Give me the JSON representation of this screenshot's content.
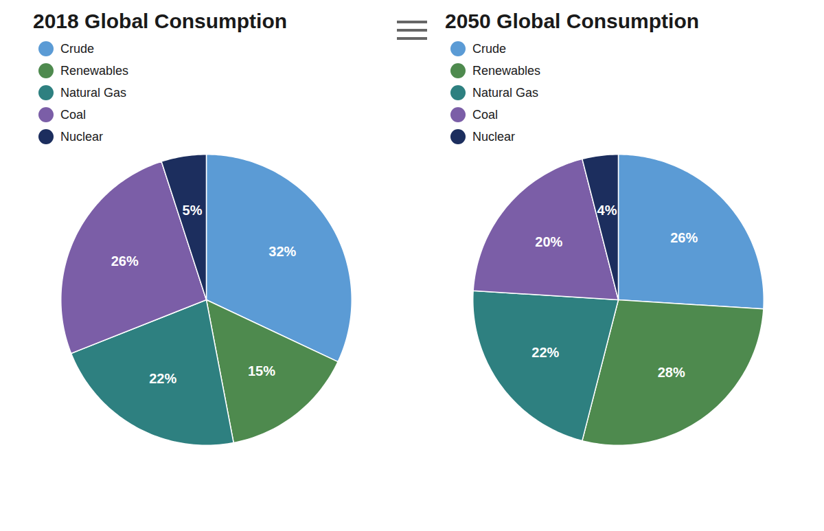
{
  "chart_data": [
    {
      "type": "pie",
      "title": "2018 Global Consumption",
      "categories": [
        "Crude",
        "Renewables",
        "Natural Gas",
        "Coal",
        "Nuclear"
      ],
      "values": [
        32,
        15,
        22,
        26,
        5
      ],
      "value_labels": [
        "32%",
        "15%",
        "22%",
        "26%",
        "5%"
      ],
      "colors": [
        "#5B9BD5",
        "#4E8A4E",
        "#2E8080",
        "#7B5EA7",
        "#1C2E5E"
      ],
      "data_labels": true,
      "legend": "top"
    },
    {
      "type": "pie",
      "title": "2050 Global Consumption",
      "categories": [
        "Crude",
        "Renewables",
        "Natural Gas",
        "Coal",
        "Nuclear"
      ],
      "values": [
        26,
        28,
        22,
        20,
        4
      ],
      "value_labels": [
        "26%",
        "28%",
        "22%",
        "20%",
        "4%"
      ],
      "colors": [
        "#5B9BD5",
        "#4E8A4E",
        "#2E8080",
        "#7B5EA7",
        "#1C2E5E"
      ],
      "data_labels": true,
      "legend": "top"
    }
  ]
}
